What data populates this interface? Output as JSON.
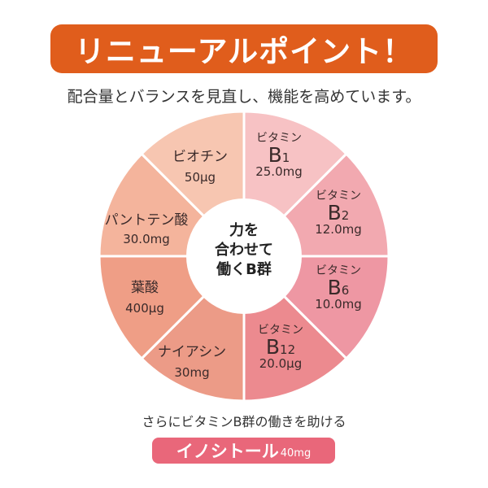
{
  "banner": {
    "title": "リニューアルポイント！"
  },
  "subtitle": "配合量とバランスを見直し、機能を高めています。",
  "center": {
    "line1": "力を",
    "line2": "合わせて",
    "line3": "働くB群"
  },
  "segments": {
    "biotin": {
      "name": "ビオチン",
      "amount": "50μg"
    },
    "b1": {
      "name": "ビタミン",
      "letter": "B",
      "sub": "1",
      "amount": "25.0mg"
    },
    "b2": {
      "name": "ビタミン",
      "letter": "B",
      "sub": "2",
      "amount": "12.0mg"
    },
    "b6": {
      "name": "ビタミン",
      "letter": "B",
      "sub": "6",
      "amount": "10.0mg"
    },
    "b12": {
      "name": "ビタミン",
      "letter": "B",
      "sub": "12",
      "amount": "20.0μg"
    },
    "niacin": {
      "name": "ナイアシン",
      "amount": "30mg"
    },
    "folate": {
      "name": "葉酸",
      "amount": "400μg"
    },
    "pantothenic": {
      "name": "パントテン酸",
      "amount": "30.0mg"
    }
  },
  "note": "さらにビタミンB群の働きを助ける",
  "inositol": {
    "name": "イノシトール",
    "amount": "40mg"
  },
  "colors": {
    "banner": "#e05d1c",
    "pill": "#e9677a",
    "biotin": "#f7c6b1",
    "b1": "#f7c2c4",
    "b2": "#f2a9b0",
    "b6": "#ee97a3",
    "b12": "#ec8a8f",
    "niacin": "#ec9b87",
    "folate": "#ef9e86",
    "pantothenic": "#f4b49c"
  }
}
